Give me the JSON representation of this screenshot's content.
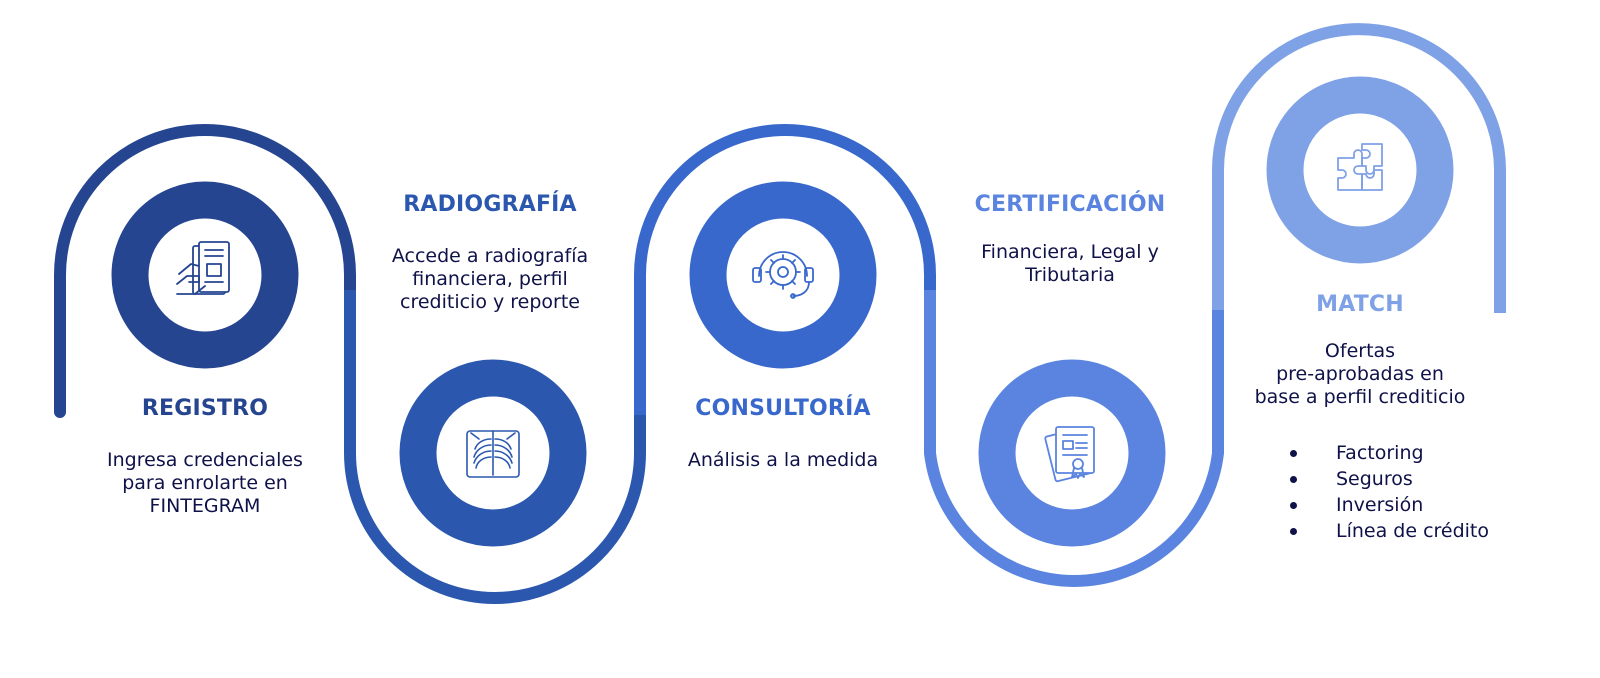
{
  "colors": {
    "step1": "#264590",
    "step2": "#2b58ae",
    "step3": "#3968cc",
    "step4": "#5a84df",
    "step5": "#7fa1e6",
    "text_dark": "#0f1248"
  },
  "steps": [
    {
      "title": "REGISTRO",
      "description": [
        "Ingresa credenciales",
        "para enrolarte en",
        "FINTEGRAM"
      ],
      "icon": "document-hand-icon"
    },
    {
      "title": "RADIOGRAFÍA",
      "description": [
        "Accede a radiografía",
        "financiera, perfil",
        "crediticio y reporte"
      ],
      "icon": "xray-chest-icon"
    },
    {
      "title": "CONSULTORÍA",
      "description": [
        "Análisis a la medida"
      ],
      "icon": "gear-headset-icon"
    },
    {
      "title": "CERTIFICACIÓN",
      "description": [
        "Financiera, Legal y",
        "Tributaria"
      ],
      "icon": "certificate-icon"
    },
    {
      "title": "MATCH",
      "description": [
        "Ofertas",
        "pre-aprobadas en",
        "base a perfil crediticio"
      ],
      "icon": "puzzle-icon",
      "bullets": [
        "Factoring",
        "Seguros",
        "Inversión",
        "Línea de crédito"
      ]
    }
  ]
}
